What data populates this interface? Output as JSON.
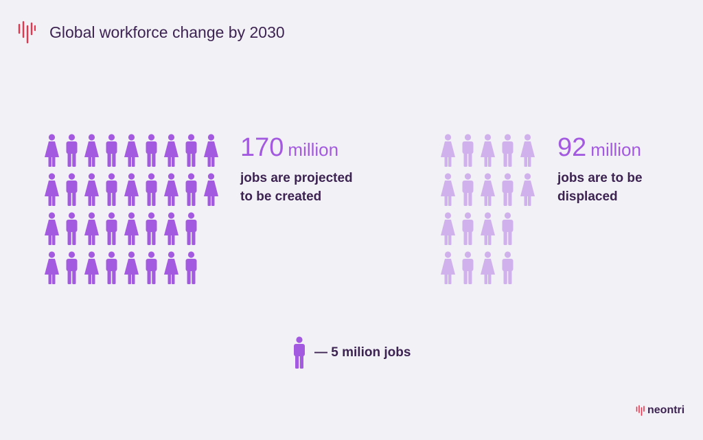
{
  "header": {
    "title": "Global workforce change by 2030"
  },
  "created": {
    "number": "170",
    "unit": "million",
    "line1": "jobs are projected",
    "line2": "to be created",
    "icons_per_row": [
      9,
      9,
      8,
      8
    ],
    "icon_value_million": 5,
    "color": "#a35ae0"
  },
  "displaced": {
    "number": "92",
    "unit": "million",
    "line1": "jobs are to be",
    "line2": "displaced",
    "icons_per_row": [
      5,
      5,
      4,
      4
    ],
    "icon_value_million": 5,
    "color": "#d1b1ec"
  },
  "legend": {
    "label": "— 5 milion jobs",
    "icon": "person-icon"
  },
  "brand": {
    "name": "neontri",
    "accent": "#e8344d"
  },
  "colors": {
    "background": "#f2f1f5",
    "text": "#3d2352",
    "accent": "#a35ae0",
    "faded": "#d1b1ec"
  }
}
